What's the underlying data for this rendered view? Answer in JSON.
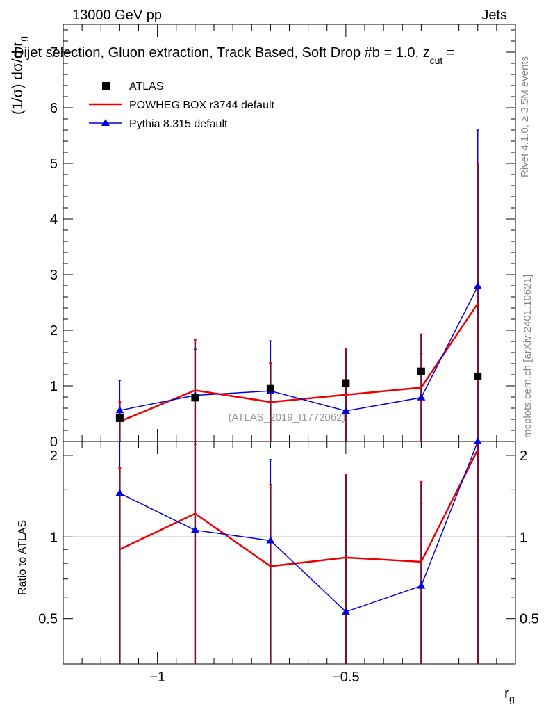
{
  "header": {
    "left": "13000 GeV pp",
    "right": "Jets",
    "selection": "Dijet selection, Gluon extraction, Track Based, Soft Drop #b = 1.0, z",
    "selection_sub": "cut",
    "selection_tail": " ="
  },
  "side": {
    "rivet": "Rivet 4.1.0, ≥ 3.5M events",
    "mcplots": "mcplots.cern.ch [arXiv:2401.10621]"
  },
  "watermark": "(ATLAS_2019_I1772062)",
  "colors": {
    "atlas": "#000000",
    "powheg": "#ee0000",
    "pythia": "#0000dd",
    "errband": "#7a1040"
  },
  "chart_data": [
    {
      "type": "line",
      "title": "",
      "ylabel_main": "(1/σ) dσ/d r",
      "ylabel_sub": "g",
      "xlim": [
        -1.25,
        -0.05
      ],
      "ylim": [
        0,
        7.5
      ],
      "y_ticks": [
        0,
        1,
        2,
        3,
        4,
        5,
        6,
        7
      ],
      "y_tick_labels": [
        "0",
        "1",
        "2",
        "3",
        "4",
        "5",
        "6",
        "7"
      ],
      "x": [
        -1.1,
        -0.9,
        -0.7,
        -0.5,
        -0.3,
        -0.15
      ],
      "legend": [
        "ATLAS",
        "POWHEG BOX r3744 default",
        "Pythia 8.315 default"
      ],
      "series": [
        {
          "name": "ATLAS",
          "values": [
            0.42,
            0.79,
            0.96,
            1.05,
            1.26,
            1.17
          ]
        },
        {
          "name": "POWHEG BOX r3744 default",
          "values": [
            0.36,
            0.92,
            0.71,
            0.84,
            0.97,
            2.48
          ],
          "err_lo": [
            0,
            0,
            0,
            0,
            0,
            0
          ],
          "err_hi": [
            0.71,
            1.83,
            1.41,
            1.67,
            1.93,
            5.0
          ]
        },
        {
          "name": "Pythia 8.315 default",
          "values": [
            0.56,
            0.83,
            0.91,
            0.55,
            0.79,
            2.79
          ],
          "err_lo": [
            0,
            0,
            0,
            0,
            0,
            0
          ],
          "err_hi": [
            1.1,
            1.66,
            1.81,
            1.03,
            1.58,
            5.6
          ]
        }
      ]
    },
    {
      "type": "line",
      "ylabel": "Ratio to ATLAS",
      "xlabel_main": "r",
      "xlabel_sub": "g",
      "xlim": [
        -1.25,
        -0.05
      ],
      "ylim": [
        0.34,
        2.25
      ],
      "y_ticks": [
        0.5,
        1,
        2
      ],
      "y_tick_labels": [
        "0.5",
        "1",
        "2"
      ],
      "x_ticks": [
        -1,
        -0.5
      ],
      "x_tick_labels": [
        "−1",
        "−0.5"
      ],
      "reference_line": 1,
      "x": [
        -1.1,
        -0.9,
        -0.7,
        -0.5,
        -0.3,
        -0.15
      ],
      "series": [
        {
          "name": "POWHEG BOX r3744 default",
          "values": [
            0.9,
            1.22,
            0.78,
            0.84,
            0.81,
            2.1
          ],
          "err_lo": [
            0,
            0,
            0,
            0,
            0,
            0
          ],
          "err_hi": [
            1.8,
            2.3,
            1.56,
            1.7,
            1.6,
            2.25
          ]
        },
        {
          "name": "Pythia 8.315 default",
          "values": [
            1.45,
            1.06,
            0.97,
            0.53,
            0.66,
            2.25
          ],
          "err_lo": [
            0,
            0,
            0,
            0,
            0,
            0
          ],
          "err_hi": [
            2.25,
            2.2,
            1.93,
            1.03,
            1.33,
            2.25
          ]
        }
      ]
    }
  ]
}
